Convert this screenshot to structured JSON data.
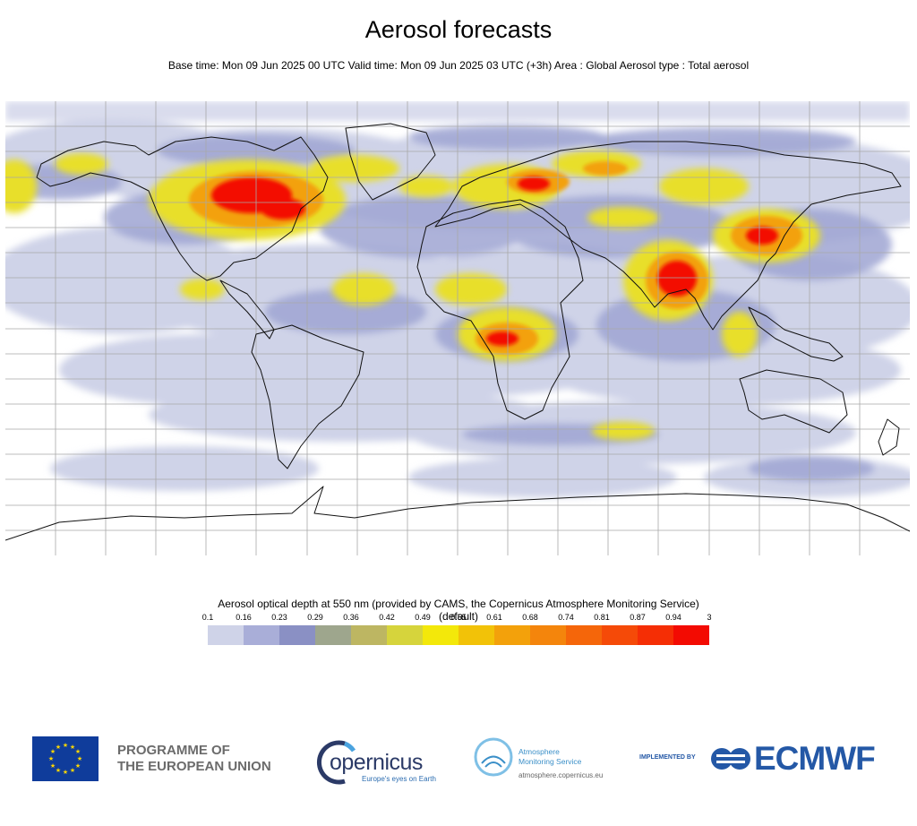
{
  "header": {
    "title": "Aerosol forecasts",
    "subtitle": "Base time: Mon 09 Jun 2025 00 UTC Valid time: Mon 09 Jun 2025 03 UTC (+3h) Area : Global Aerosol type : Total aerosol"
  },
  "map": {
    "projection": "equirectangular",
    "area": "Global",
    "grid_lines": true,
    "coastlines": true,
    "background_color": "#ffffff"
  },
  "colorbar": {
    "title": "Aerosol optical depth at 550 nm (provided by CAMS, the Copernicus Atmosphere Monitoring Service) (default)",
    "ticks": [
      "0.1",
      "0.16",
      "0.23",
      "0.29",
      "0.36",
      "0.42",
      "0.49",
      "0.55",
      "0.61",
      "0.68",
      "0.74",
      "0.81",
      "0.87",
      "0.94",
      "3"
    ],
    "colors": [
      "#cfd3e8",
      "#a9aed8",
      "#8a90c4",
      "#9ea68d",
      "#bdb662",
      "#d6d43c",
      "#f3e80a",
      "#f2c208",
      "#f3a10b",
      "#f4850c",
      "#f5660a",
      "#f54a08",
      "#f52e05",
      "#f30b02"
    ]
  },
  "logos": {
    "eu_line1": "PROGRAMME OF",
    "eu_line2": "THE EUROPEAN UNION",
    "copernicus": "opernicus",
    "copernicus_tagline": "Europe's eyes on Earth",
    "ams_line1": "Atmosphere",
    "ams_line2": "Monitoring Service",
    "ams_url": "atmosphere.copernicus.eu",
    "implemented_by": "IMPLEMENTED BY",
    "ecmwf": "ECMWF"
  }
}
